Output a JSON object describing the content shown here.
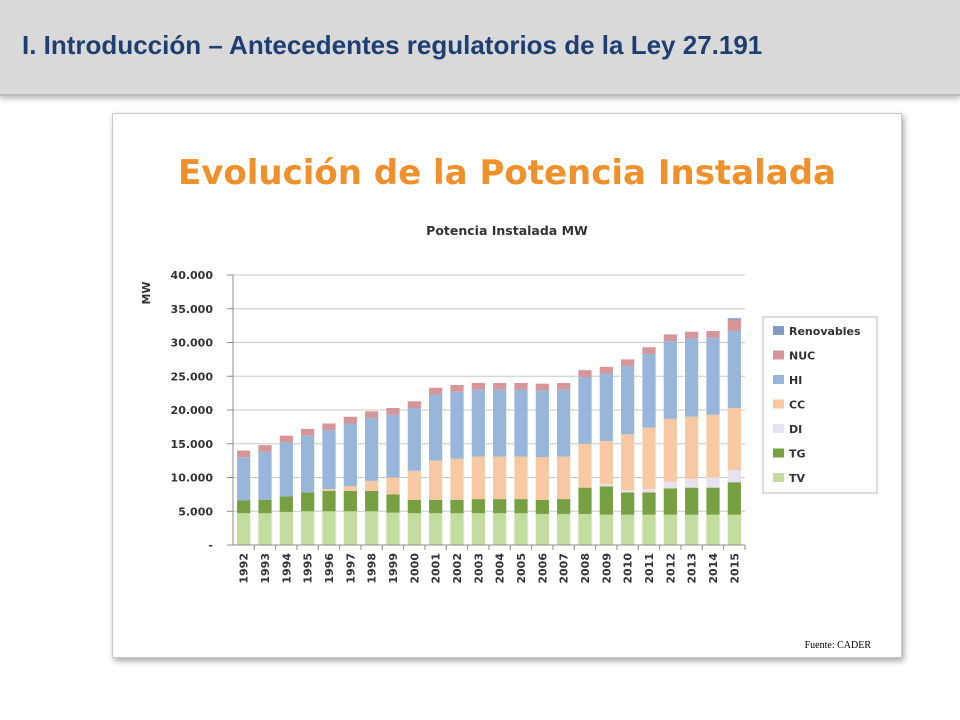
{
  "slide": {
    "title": "I. Introducción – Antecedentes regulatorios de la Ley 27.191",
    "source": "Fuente: CADER",
    "colors": {
      "header_bg": "#d9d9d9",
      "title": "#1f3f73"
    }
  },
  "chart_data": {
    "type": "bar",
    "stacked": true,
    "banner": "Evolución de la Potencia Instalada",
    "title": "Potencia Instalada MW",
    "xlabel": "",
    "ylabel": "MW",
    "ylim": [
      0,
      40000
    ],
    "yticks": [
      "-",
      "5.000",
      "10.000",
      "15.000",
      "20.000",
      "25.000",
      "30.000",
      "35.000",
      "40.000"
    ],
    "grid": true,
    "legend_position": "right",
    "categories": [
      "1992",
      "1993",
      "1994",
      "1995",
      "1996",
      "1997",
      "1998",
      "1999",
      "2000",
      "2001",
      "2002",
      "2003",
      "2004",
      "2005",
      "2006",
      "2007",
      "2008",
      "2009",
      "2010",
      "2011",
      "2012",
      "2013",
      "2014",
      "2015"
    ],
    "series": [
      {
        "name": "TV",
        "color": "#c3dd9e",
        "values": [
          4700,
          4700,
          4900,
          5000,
          5000,
          5000,
          5000,
          4800,
          4700,
          4700,
          4700,
          4700,
          4700,
          4700,
          4600,
          4600,
          4600,
          4500,
          4500,
          4500,
          4500,
          4500,
          4500,
          4500
        ]
      },
      {
        "name": "TG",
        "color": "#77a043",
        "values": [
          1900,
          2000,
          2300,
          2800,
          3000,
          3000,
          3000,
          2700,
          2000,
          2000,
          2000,
          2100,
          2100,
          2100,
          2100,
          2200,
          3900,
          4200,
          3300,
          3300,
          3900,
          4000,
          4000,
          4800
        ]
      },
      {
        "name": "DI",
        "color": "#e8e2ef",
        "values": [
          0,
          0,
          0,
          0,
          0,
          0,
          0,
          0,
          0,
          0,
          0,
          0,
          0,
          0,
          0,
          0,
          0,
          300,
          300,
          500,
          1000,
          1300,
          1500,
          1800
        ]
      },
      {
        "name": "CC",
        "color": "#f8c8a2",
        "values": [
          0,
          0,
          0,
          0,
          300,
          700,
          1500,
          2500,
          4300,
          5800,
          6100,
          6300,
          6300,
          6300,
          6300,
          6300,
          6500,
          6400,
          8300,
          9100,
          9300,
          9200,
          9300,
          9200
        ]
      },
      {
        "name": "HI",
        "color": "#97b6da",
        "values": [
          6400,
          7100,
          8000,
          8400,
          8700,
          9300,
          9300,
          9300,
          9300,
          9800,
          9900,
          9900,
          9900,
          9900,
          9900,
          9900,
          9900,
          10000,
          10100,
          10900,
          11500,
          11600,
          11400,
          11400
        ]
      },
      {
        "name": "NUC",
        "color": "#d69598",
        "values": [
          1000,
          1000,
          1000,
          1000,
          1000,
          1000,
          1000,
          1000,
          1000,
          1000,
          1000,
          1000,
          1000,
          1000,
          1000,
          1000,
          1000,
          1000,
          1000,
          1000,
          1000,
          1000,
          1000,
          1700
        ]
      },
      {
        "name": "Renovables",
        "color": "#7f9cc7",
        "values": [
          0,
          0,
          0,
          0,
          0,
          0,
          0,
          0,
          0,
          0,
          0,
          0,
          0,
          0,
          0,
          0,
          0,
          0,
          0,
          0,
          0,
          0,
          0,
          200
        ]
      }
    ],
    "legend_order": [
      "Renovables",
      "NUC",
      "HI",
      "CC",
      "DI",
      "TG",
      "TV"
    ],
    "banner_color": "#f0902a"
  }
}
